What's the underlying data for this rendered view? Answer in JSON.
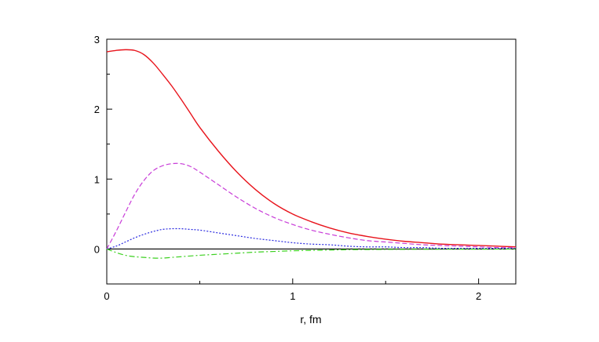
{
  "chart_data": {
    "type": "line",
    "title": "",
    "xlabel": "r, fm",
    "ylabel": "",
    "xlim": [
      0,
      2.2
    ],
    "ylim": [
      -0.5,
      3
    ],
    "x_ticks": [
      "0",
      "1",
      "2"
    ],
    "y_ticks": [
      "0",
      "1",
      "2",
      "3"
    ],
    "x_tick_values": [
      0,
      1,
      2
    ],
    "y_tick_values": [
      0,
      1,
      2,
      3
    ],
    "x_minor_ticks": [
      0.5,
      1.5
    ],
    "y_minor_ticks": [
      -0.5,
      0.5,
      1.5,
      2.5
    ],
    "grid": false,
    "legend": "none",
    "zero_line": 0,
    "series": [
      {
        "color": "#e8141c",
        "style": "solid",
        "x": [
          0,
          0.05,
          0.1,
          0.15,
          0.2,
          0.25,
          0.3,
          0.35,
          0.4,
          0.45,
          0.5,
          0.6,
          0.7,
          0.8,
          0.9,
          1.0,
          1.1,
          1.2,
          1.3,
          1.4,
          1.5,
          1.6,
          1.7,
          1.8,
          1.9,
          2.0,
          2.1,
          2.2
        ],
        "y": [
          2.82,
          2.84,
          2.85,
          2.84,
          2.78,
          2.66,
          2.5,
          2.33,
          2.14,
          1.94,
          1.74,
          1.4,
          1.1,
          0.85,
          0.65,
          0.5,
          0.39,
          0.3,
          0.23,
          0.18,
          0.14,
          0.11,
          0.09,
          0.07,
          0.06,
          0.05,
          0.04,
          0.03
        ]
      },
      {
        "color": "#c83cd8",
        "style": "dashed",
        "x": [
          0,
          0.05,
          0.1,
          0.15,
          0.2,
          0.25,
          0.3,
          0.35,
          0.4,
          0.45,
          0.5,
          0.6,
          0.7,
          0.8,
          0.9,
          1.0,
          1.1,
          1.2,
          1.3,
          1.4,
          1.5,
          1.6,
          1.7,
          1.8,
          1.9,
          2.0,
          2.1,
          2.2
        ],
        "y": [
          0,
          0.25,
          0.52,
          0.78,
          0.98,
          1.12,
          1.19,
          1.22,
          1.22,
          1.18,
          1.1,
          0.92,
          0.74,
          0.58,
          0.45,
          0.35,
          0.27,
          0.21,
          0.16,
          0.12,
          0.1,
          0.08,
          0.06,
          0.05,
          0.04,
          0.03,
          0.02,
          0.02
        ]
      },
      {
        "color": "#2a2ae0",
        "style": "dotted",
        "x": [
          0,
          0.05,
          0.1,
          0.15,
          0.2,
          0.25,
          0.3,
          0.35,
          0.4,
          0.45,
          0.5,
          0.6,
          0.7,
          0.8,
          0.9,
          1.0,
          1.1,
          1.2,
          1.3,
          1.4,
          1.5,
          1.6,
          1.7,
          1.8,
          1.9,
          2.0,
          2.1,
          2.2
        ],
        "y": [
          0,
          0.04,
          0.1,
          0.16,
          0.21,
          0.25,
          0.28,
          0.29,
          0.29,
          0.28,
          0.27,
          0.23,
          0.19,
          0.15,
          0.12,
          0.09,
          0.07,
          0.06,
          0.04,
          0.03,
          0.03,
          0.02,
          0.02,
          0.01,
          0.01,
          0.01,
          0.01,
          0.01
        ]
      },
      {
        "color": "#3cd020",
        "style": "dashdot",
        "x": [
          0,
          0.05,
          0.1,
          0.15,
          0.2,
          0.25,
          0.3,
          0.35,
          0.4,
          0.5,
          0.6,
          0.7,
          0.8,
          0.9,
          1.0,
          1.1,
          1.2,
          1.3,
          1.4,
          1.5,
          1.6,
          1.8,
          2.0,
          2.2
        ],
        "y": [
          0,
          -0.05,
          -0.09,
          -0.11,
          -0.12,
          -0.13,
          -0.13,
          -0.12,
          -0.11,
          -0.09,
          -0.075,
          -0.06,
          -0.045,
          -0.035,
          -0.025,
          -0.02,
          -0.015,
          -0.01,
          -0.008,
          -0.006,
          -0.005,
          -0.003,
          -0.002,
          -0.001
        ]
      }
    ]
  }
}
